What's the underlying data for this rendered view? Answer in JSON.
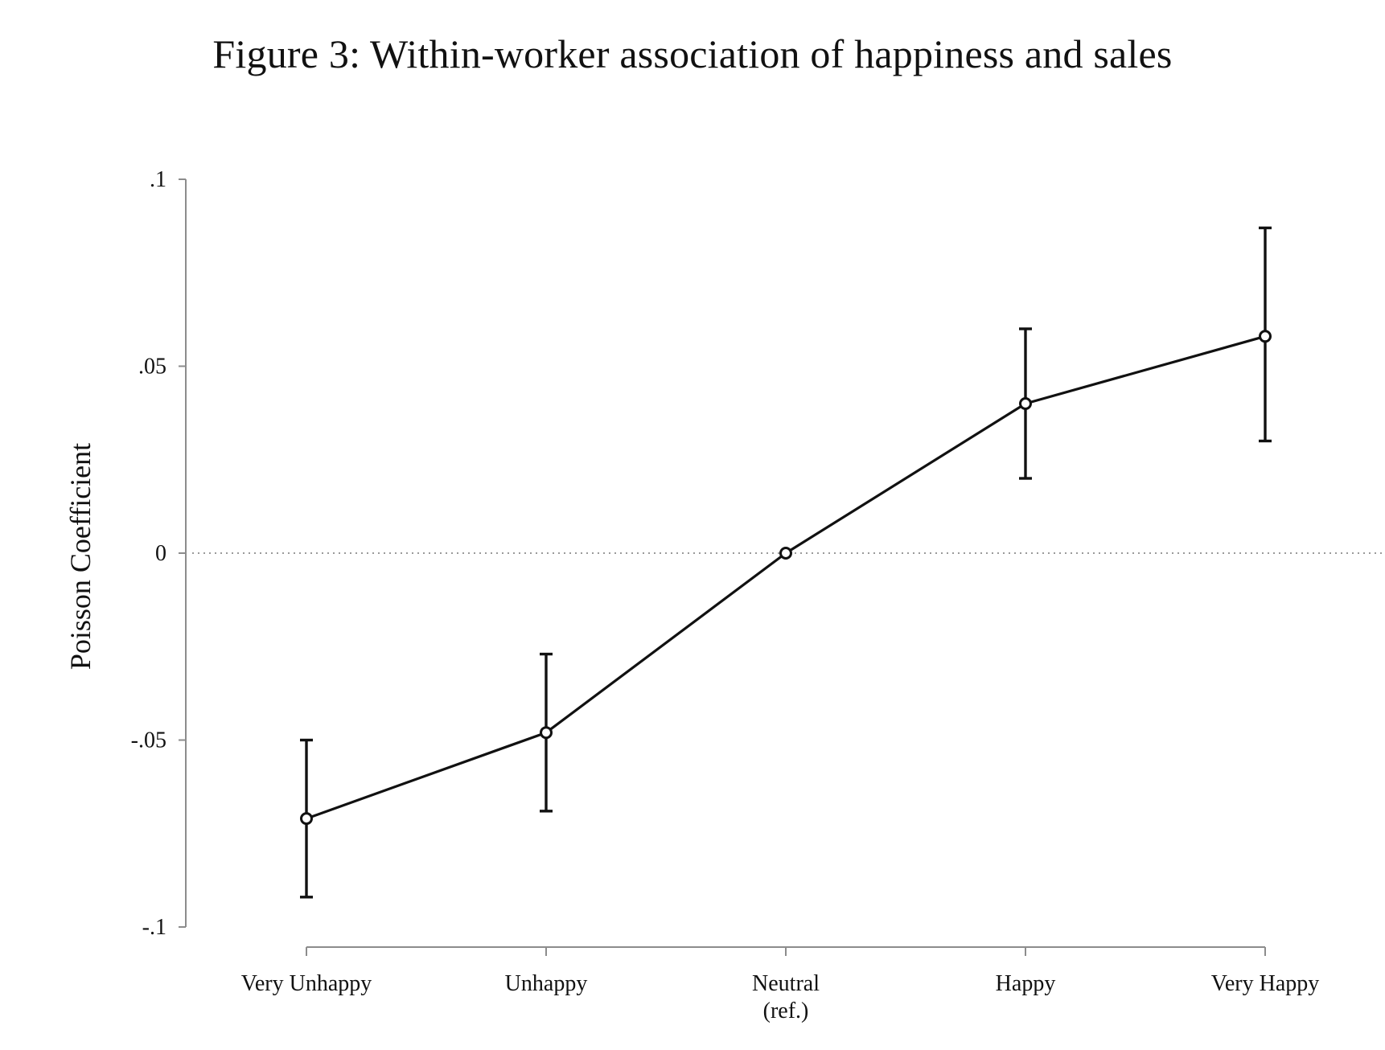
{
  "chart_data": {
    "type": "line",
    "title": "Figure 3: Within-worker association of happiness and sales",
    "xlabel": "",
    "ylabel": "Poisson Coefficient",
    "categories": [
      "Very Unhappy",
      "Unhappy",
      "Neutral\n(ref.)",
      "Happy",
      "Very Happy"
    ],
    "y_ticks": [
      ".1",
      ".05",
      "0",
      "-.05",
      "-.1"
    ],
    "y_tick_values": [
      0.1,
      0.05,
      0,
      -0.05,
      -0.1
    ],
    "ylim": [
      -0.1,
      0.1
    ],
    "reference_line": {
      "y": 0,
      "style": "dotted",
      "color": "#9a9a9a"
    },
    "series": [
      {
        "values": [
          -0.071,
          -0.048,
          0.0,
          0.04,
          0.058
        ],
        "ci_lower": [
          -0.092,
          -0.069,
          0.0,
          0.02,
          0.03
        ],
        "ci_upper": [
          -0.05,
          -0.027,
          0.0,
          0.06,
          0.087
        ],
        "color": "#111111",
        "marker": "hollow-circle"
      }
    ],
    "grid": false,
    "legend": "none"
  }
}
